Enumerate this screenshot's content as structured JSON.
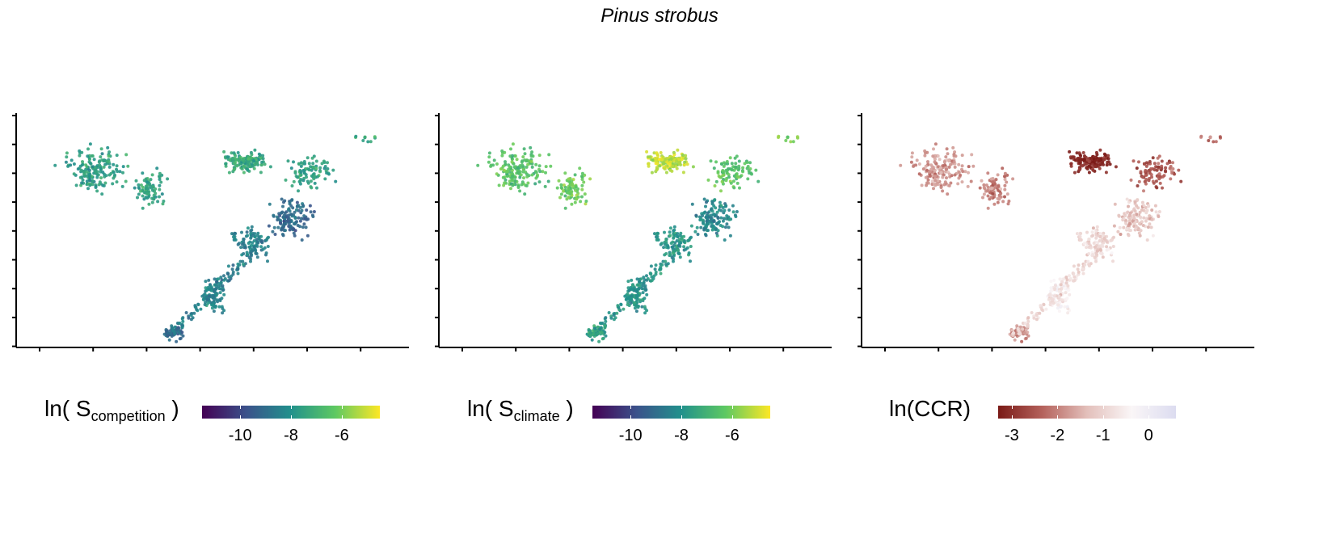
{
  "title": "Pinus strobus",
  "chart_data": [
    {
      "type": "scatter",
      "panel": "competition",
      "legend_title_main": "ln( S",
      "legend_title_sub": "competition",
      "legend_title_end": " )",
      "color_scale": "viridis",
      "color_range": [
        -11.5,
        -4.5
      ],
      "legend_ticks": [
        "-10",
        "-8",
        "-6"
      ],
      "legend_tick_values": [
        -10,
        -8,
        -6
      ]
    },
    {
      "type": "scatter",
      "panel": "climate",
      "legend_title_main": "ln( S",
      "legend_title_sub": "climate",
      "legend_title_end": " )",
      "color_scale": "viridis",
      "color_range": [
        -11.5,
        -4.5
      ],
      "legend_ticks": [
        "-10",
        "-8",
        "-6"
      ],
      "legend_tick_values": [
        -10,
        -8,
        -6
      ]
    },
    {
      "type": "scatter",
      "panel": "ccr",
      "legend_title_main": "ln(CCR)",
      "legend_title_sub": "",
      "legend_title_end": "",
      "color_scale": "diverging-red-purple",
      "color_range": [
        -3.3,
        0.6
      ],
      "legend_ticks": [
        "-3",
        "-2",
        "-1",
        "0"
      ],
      "legend_tick_values": [
        -3,
        -2,
        -1,
        0
      ]
    }
  ],
  "colors": {
    "viridis": [
      "#440154",
      "#3b528b",
      "#21918c",
      "#5ec962",
      "#fde725"
    ],
    "diverging": [
      "#7a1a16",
      "#b5625c",
      "#e3c0bb",
      "#faf6f7",
      "#dcdcf0"
    ]
  }
}
